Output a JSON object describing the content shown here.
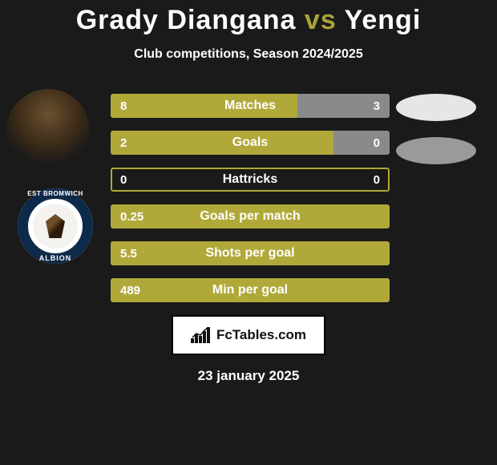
{
  "title": {
    "p1": "Grady Diangana",
    "vs": "vs",
    "p2": "Yengi"
  },
  "subtitle": "Club competitions, Season 2024/2025",
  "colors": {
    "primary": "#b0a93a",
    "secondary": "#8a8a8a",
    "background": "#1a1a1a",
    "text": "#ffffff",
    "ellipse_light": "#e6e6e6",
    "ellipse_grey": "#9a9a9a"
  },
  "rows": [
    {
      "label": "Matches",
      "left": "8",
      "right": "3",
      "left_pct": 67,
      "mode": "split"
    },
    {
      "label": "Goals",
      "left": "2",
      "right": "0",
      "left_pct": 80,
      "mode": "split"
    },
    {
      "label": "Hattricks",
      "left": "0",
      "right": "0",
      "left_pct": 0,
      "mode": "border"
    },
    {
      "label": "Goals per match",
      "left": "0.25",
      "right": "",
      "left_pct": 100,
      "mode": "full"
    },
    {
      "label": "Shots per goal",
      "left": "5.5",
      "right": "",
      "left_pct": 100,
      "mode": "full"
    },
    {
      "label": "Min per goal",
      "left": "489",
      "right": "",
      "left_pct": 100,
      "mode": "full"
    }
  ],
  "ellipses": [
    {
      "style": "light"
    },
    {
      "style": "grey"
    }
  ],
  "badge": {
    "top": "EST BROMWICH",
    "bottom": "ALBION"
  },
  "footer": {
    "site": "FcTables.com"
  },
  "date": "23 january 2025"
}
